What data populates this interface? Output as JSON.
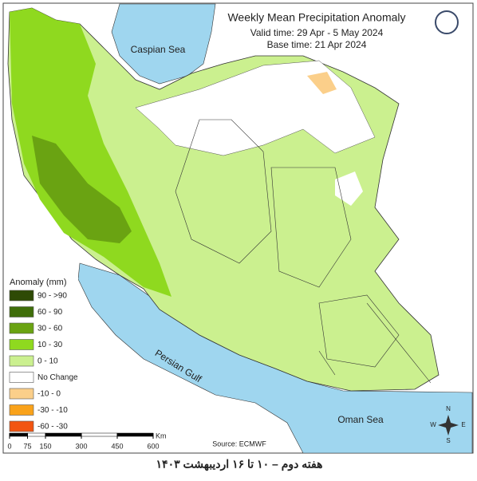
{
  "header": {
    "title": "Weekly Mean Precipitation Anomaly",
    "valid_time": "Valid time: 29 Apr - 5 May 2024",
    "base_time": "Base time: 21 Apr 2024"
  },
  "water_labels": {
    "caspian": "Caspian Sea",
    "gulf": "Persian Gulf",
    "oman": "Oman Sea"
  },
  "legend": {
    "title": "Anomaly (mm)",
    "items": [
      {
        "label": "90 - >90",
        "color": "#2e4a05"
      },
      {
        "label": "60 - 90",
        "color": "#3f6e0a"
      },
      {
        "label": "30 - 60",
        "color": "#6aa312"
      },
      {
        "label": "10 - 30",
        "color": "#8fd91f"
      },
      {
        "label": "0 - 10",
        "color": "#cbf08f"
      },
      {
        "label": "No Change",
        "color": "#ffffff"
      },
      {
        "label": "-10 - 0",
        "color": "#fbcf8a"
      },
      {
        "label": "-30 - -10",
        "color": "#f9a21a"
      },
      {
        "label": "-60 - -30",
        "color": "#f25512"
      }
    ]
  },
  "scale": {
    "ticks": [
      0,
      75,
      150,
      300,
      450,
      600
    ],
    "unit": "Km"
  },
  "compass": {
    "n": "N",
    "s": "S",
    "e": "E",
    "w": "W"
  },
  "source": "Source: ECMWF",
  "caption": "هفته دوم – ۱۰ تا ۱۶ اردیبهشت ۱۴۰۳"
}
